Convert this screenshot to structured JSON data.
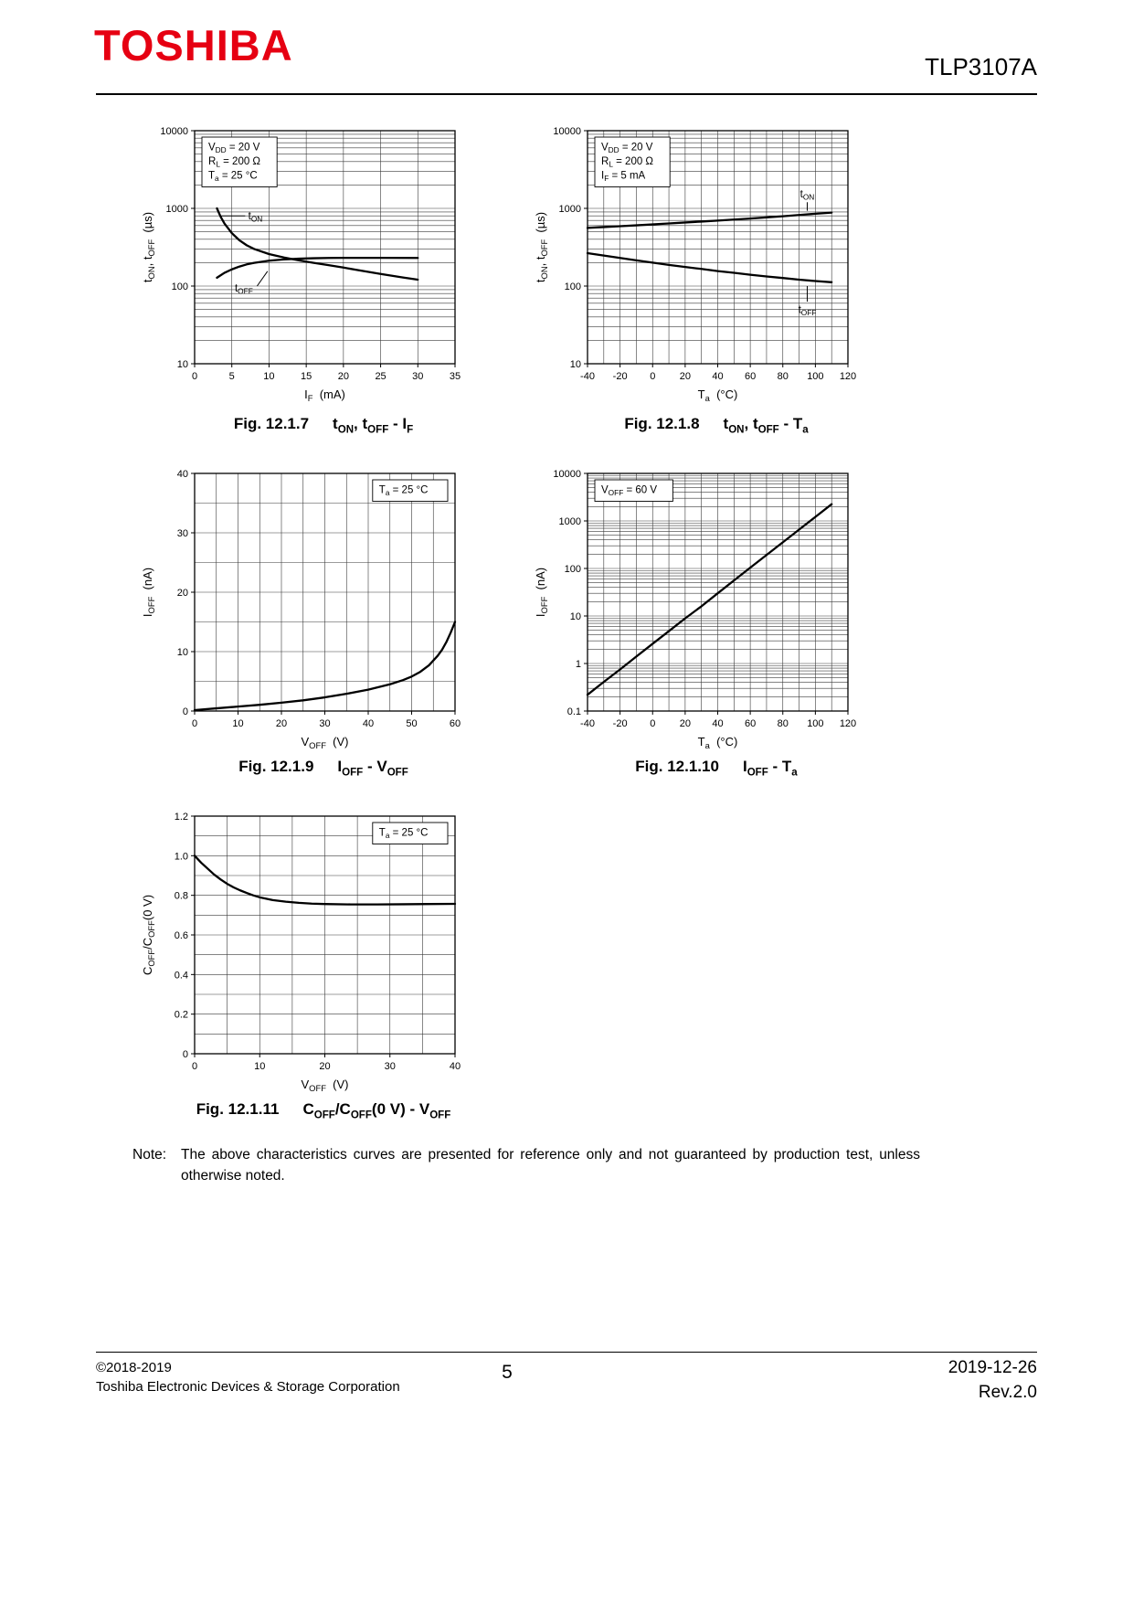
{
  "header": {
    "brand": "TOSHIBA",
    "part_number": "TLP3107A"
  },
  "note": {
    "label": "Note:",
    "text": "The above characteristics curves are presented for reference only and not guaranteed by production test, unless otherwise noted."
  },
  "footer": {
    "copyright": "©2018-2019",
    "company": "Toshiba Electronic Devices & Storage Corporation",
    "page": "5",
    "date": "2019-12-26",
    "rev": "Rev.2.0"
  },
  "chart_data": [
    {
      "id": "fig-12-1-7",
      "type": "line",
      "caption_fig": "Fig. 12.1.7",
      "caption_title": "t_{ON}, t_{OFF} - I_{F}",
      "xlabel": "I_{F}  (mA)",
      "ylabel": "t_{ON}, t_{OFF}  (µs)",
      "x": {
        "scale": "linear",
        "min": 0,
        "max": 35,
        "ticks": [
          0,
          5,
          10,
          15,
          20,
          25,
          30,
          35
        ],
        "grid_step": 5
      },
      "y": {
        "scale": "log",
        "min": 10,
        "max": 10000,
        "ticks": [
          10,
          100,
          1000,
          10000
        ],
        "tick_labels": [
          "10",
          "100",
          "1000",
          "10000"
        ]
      },
      "conditions": {
        "pos": "tl",
        "lines": [
          "V_{DD} = 20 V",
          "R_{L} = 200 Ω",
          "T_{a} = 25 °C"
        ]
      },
      "series": [
        {
          "name": "t_{ON}",
          "label_at": [
            7.2,
            800
          ],
          "label_anchor": "start",
          "leader": [
            [
              6.8,
              800
            ],
            [
              3.6,
              800
            ]
          ],
          "points": [
            [
              3,
              1000
            ],
            [
              3.5,
              780
            ],
            [
              4,
              640
            ],
            [
              5,
              480
            ],
            [
              6,
              390
            ],
            [
              7,
              335
            ],
            [
              8,
              300
            ],
            [
              10,
              258
            ],
            [
              12,
              233
            ],
            [
              14,
              214
            ],
            [
              16,
              199
            ],
            [
              18,
              186
            ],
            [
              20,
              173
            ],
            [
              22,
              160
            ],
            [
              25,
              143
            ],
            [
              28,
              129
            ],
            [
              30,
              121
            ]
          ]
        },
        {
          "name": "t_{OFF}",
          "label_at": [
            5.4,
            95
          ],
          "label_anchor": "start",
          "leader": [
            [
              8.4,
              100
            ],
            [
              9.8,
              155
            ]
          ],
          "points": [
            [
              3,
              128
            ],
            [
              4,
              148
            ],
            [
              5,
              164
            ],
            [
              6,
              178
            ],
            [
              7,
              190
            ],
            [
              8,
              199
            ],
            [
              10,
              212
            ],
            [
              12,
              220
            ],
            [
              14,
              225
            ],
            [
              16,
              228
            ],
            [
              18,
              230
            ],
            [
              20,
              231
            ],
            [
              25,
              231
            ],
            [
              30,
              230
            ]
          ]
        }
      ]
    },
    {
      "id": "fig-12-1-8",
      "type": "line",
      "caption_fig": "Fig. 12.1.8",
      "caption_title": "t_{ON}, t_{OFF} - T_{a}",
      "xlabel": "T_{a}  (°C)",
      "ylabel": "t_{ON}, t_{OFF}  (µs)",
      "x": {
        "scale": "linear",
        "min": -40,
        "max": 120,
        "ticks": [
          -40,
          -20,
          0,
          20,
          40,
          60,
          80,
          100,
          120
        ],
        "grid_step": 10
      },
      "y": {
        "scale": "log",
        "min": 10,
        "max": 10000,
        "ticks": [
          10,
          100,
          1000,
          10000
        ],
        "tick_labels": [
          "10",
          "100",
          "1000",
          "10000"
        ]
      },
      "conditions": {
        "pos": "tl",
        "lines": [
          "V_{DD} = 20 V",
          "R_{L} = 200 Ω",
          "I_{F} = 5 mA"
        ]
      },
      "series": [
        {
          "name": "t_{ON}",
          "label_at": [
            95,
            1550
          ],
          "label_anchor": "middle",
          "leader": [
            [
              95,
              1200
            ],
            [
              95,
              930
            ]
          ],
          "points": [
            [
              -40,
              560
            ],
            [
              -30,
              575
            ],
            [
              -20,
              590
            ],
            [
              -10,
              605
            ],
            [
              0,
              622
            ],
            [
              10,
              640
            ],
            [
              20,
              658
            ],
            [
              30,
              676
            ],
            [
              40,
              696
            ],
            [
              50,
              717
            ],
            [
              60,
              740
            ],
            [
              70,
              765
            ],
            [
              80,
              792
            ],
            [
              90,
              822
            ],
            [
              100,
              853
            ],
            [
              110,
              882
            ]
          ]
        },
        {
          "name": "t_{OFF}",
          "label_at": [
            95,
            50
          ],
          "label_anchor": "middle",
          "leader": [
            [
              95,
              63
            ],
            [
              95,
              100
            ]
          ],
          "points": [
            [
              -40,
              265
            ],
            [
              -30,
              247
            ],
            [
              -20,
              230
            ],
            [
              -10,
              214
            ],
            [
              0,
              200
            ],
            [
              10,
              187
            ],
            [
              20,
              176
            ],
            [
              30,
              166
            ],
            [
              40,
              156
            ],
            [
              50,
              148
            ],
            [
              60,
              140
            ],
            [
              70,
              133
            ],
            [
              80,
              127
            ],
            [
              90,
              121
            ],
            [
              100,
              116
            ],
            [
              110,
              112
            ]
          ]
        }
      ]
    },
    {
      "id": "fig-12-1-9",
      "type": "line",
      "caption_fig": "Fig. 12.1.9",
      "caption_title": "I_{OFF} - V_{OFF}",
      "xlabel": "V_{OFF}  (V)",
      "ylabel": "I_{OFF}  (nA)",
      "x": {
        "scale": "linear",
        "min": 0,
        "max": 60,
        "ticks": [
          0,
          10,
          20,
          30,
          40,
          50,
          60
        ],
        "grid_step": 5
      },
      "y": {
        "scale": "linear",
        "min": 0,
        "max": 40,
        "ticks": [
          0,
          10,
          20,
          30,
          40
        ],
        "tick_labels": [
          "0",
          "10",
          "20",
          "30",
          "40"
        ],
        "grid_step": 5
      },
      "conditions": {
        "pos": "tr",
        "lines": [
          "T_{a} = 25 °C"
        ]
      },
      "series": [
        {
          "name": "I_{OFF}",
          "points": [
            [
              0,
              0.15
            ],
            [
              5,
              0.45
            ],
            [
              10,
              0.75
            ],
            [
              15,
              1.05
            ],
            [
              20,
              1.4
            ],
            [
              25,
              1.8
            ],
            [
              30,
              2.3
            ],
            [
              35,
              2.9
            ],
            [
              40,
              3.6
            ],
            [
              45,
              4.5
            ],
            [
              48,
              5.2
            ],
            [
              50,
              5.8
            ],
            [
              52,
              6.6
            ],
            [
              54,
              7.7
            ],
            [
              56,
              9.3
            ],
            [
              57,
              10.3
            ],
            [
              58,
              11.6
            ],
            [
              59,
              13.2
            ],
            [
              60,
              15
            ]
          ]
        }
      ]
    },
    {
      "id": "fig-12-1-10",
      "type": "line",
      "caption_fig": "Fig. 12.1.10",
      "caption_title": "I_{OFF} - T_{a}",
      "xlabel": "T_{a}  (°C)",
      "ylabel": "I_{OFF}  (nA)",
      "x": {
        "scale": "linear",
        "min": -40,
        "max": 120,
        "ticks": [
          -40,
          -20,
          0,
          20,
          40,
          60,
          80,
          100,
          120
        ],
        "grid_step": 10
      },
      "y": {
        "scale": "log",
        "min": 0.1,
        "max": 10000,
        "ticks": [
          0.1,
          1,
          10,
          100,
          1000,
          10000
        ],
        "tick_labels": [
          "0.1",
          "1",
          "10",
          "100",
          "1000",
          "10000"
        ]
      },
      "conditions": {
        "pos": "tl",
        "lines": [
          "V_{OFF} = 60 V"
        ]
      },
      "series": [
        {
          "name": "I_{OFF}",
          "points": [
            [
              -40,
              0.22
            ],
            [
              -30,
              0.41
            ],
            [
              -20,
              0.75
            ],
            [
              -10,
              1.4
            ],
            [
              0,
              2.6
            ],
            [
              10,
              4.8
            ],
            [
              20,
              8.9
            ],
            [
              30,
              16
            ],
            [
              40,
              30
            ],
            [
              50,
              56
            ],
            [
              60,
              104
            ],
            [
              70,
              192
            ],
            [
              80,
              355
            ],
            [
              90,
              657
            ],
            [
              100,
              1215
            ],
            [
              110,
              2250
            ]
          ]
        }
      ]
    },
    {
      "id": "fig-12-1-11",
      "type": "line",
      "caption_fig": "Fig. 12.1.11",
      "caption_title": "C_{OFF}/C_{OFF}(0 V) - V_{OFF}",
      "xlabel": "V_{OFF}  (V)",
      "ylabel": "C_{OFF}/C_{OFF}(0 V)",
      "x": {
        "scale": "linear",
        "min": 0,
        "max": 40,
        "ticks": [
          0,
          10,
          20,
          30,
          40
        ],
        "grid_step": 5
      },
      "y": {
        "scale": "linear",
        "min": 0,
        "max": 1.2,
        "ticks": [
          0,
          0.2,
          0.4,
          0.6,
          0.8,
          1.0,
          1.2
        ],
        "tick_labels": [
          "0",
          "0.2",
          "0.4",
          "0.6",
          "0.8",
          "1.0",
          "1.2"
        ],
        "grid_step": 0.1
      },
      "conditions": {
        "pos": "tr",
        "lines": [
          "T_{a} = 25 °C"
        ]
      },
      "series": [
        {
          "name": "C_{OFF}/C_{OFF}(0 V)",
          "points": [
            [
              0,
              1.0
            ],
            [
              1,
              0.965
            ],
            [
              2,
              0.935
            ],
            [
              3,
              0.905
            ],
            [
              4,
              0.88
            ],
            [
              5,
              0.858
            ],
            [
              6,
              0.84
            ],
            [
              7,
              0.825
            ],
            [
              8,
              0.812
            ],
            [
              9,
              0.8
            ],
            [
              10,
              0.79
            ],
            [
              12,
              0.776
            ],
            [
              14,
              0.768
            ],
            [
              16,
              0.762
            ],
            [
              18,
              0.758
            ],
            [
              20,
              0.756
            ],
            [
              24,
              0.754
            ],
            [
              28,
              0.754
            ],
            [
              32,
              0.755
            ],
            [
              36,
              0.756
            ],
            [
              40,
              0.757
            ]
          ]
        }
      ]
    }
  ]
}
